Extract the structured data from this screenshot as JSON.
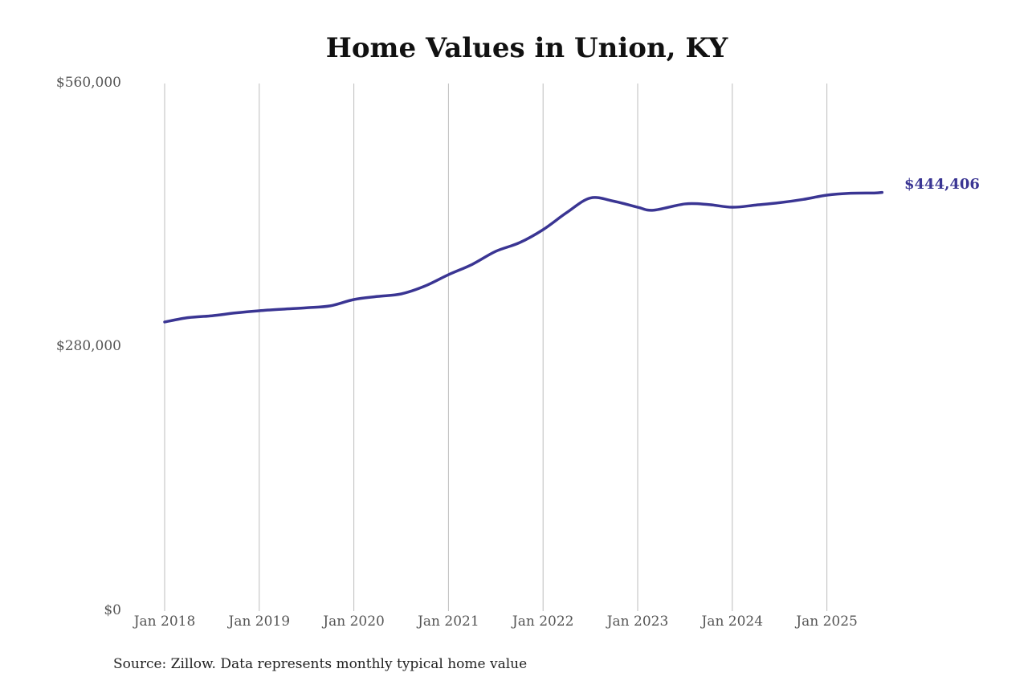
{
  "chart_data": {
    "type": "line",
    "title": "Home Values in Union, KY",
    "xlabel": "",
    "ylabel": "",
    "ylim": [
      0,
      560000
    ],
    "yticks": [
      "$0",
      "$280,000",
      "$560,000"
    ],
    "xticks": [
      "Jan 2018",
      "Jan 2019",
      "Jan 2020",
      "Jan 2021",
      "Jan 2022",
      "Jan 2023",
      "Jan 2024",
      "Jan 2025"
    ],
    "grid": "vertical",
    "legend": "none",
    "series": [
      {
        "name": "Typical home value",
        "color": "#3a3593",
        "x": [
          "2018-01",
          "2018-04",
          "2018-07",
          "2018-10",
          "2019-01",
          "2019-04",
          "2019-07",
          "2019-10",
          "2020-01",
          "2020-04",
          "2020-07",
          "2020-10",
          "2021-01",
          "2021-04",
          "2021-07",
          "2021-10",
          "2022-01",
          "2022-04",
          "2022-07",
          "2022-10",
          "2023-01",
          "2023-03",
          "2023-07",
          "2023-10",
          "2024-01",
          "2024-04",
          "2024-07",
          "2024-10",
          "2025-01",
          "2025-04",
          "2025-07",
          "2025-08"
        ],
        "values": [
          306900,
          311500,
          313500,
          316500,
          318800,
          320500,
          322000,
          324000,
          330700,
          334000,
          336700,
          345000,
          357100,
          368000,
          381900,
          391000,
          404900,
          423000,
          438500,
          435000,
          428700,
          425500,
          432200,
          431500,
          428700,
          431000,
          433500,
          437000,
          441500,
          443500,
          443800,
          444406
        ]
      }
    ],
    "annotations": [
      {
        "text": "$444,406",
        "x": "2025-08",
        "y": 444406
      }
    ],
    "source": "Source: Zillow. Data represents monthly typical home value"
  }
}
